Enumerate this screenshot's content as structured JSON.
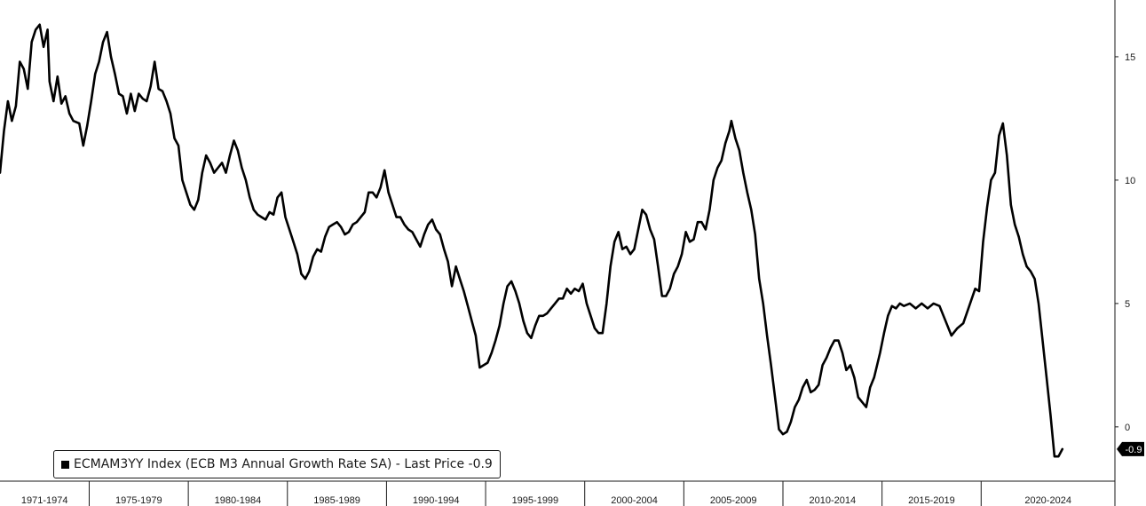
{
  "legend": {
    "text": "ECMAM3YY Index (ECB M3 Annual Growth Rate SA) - Last Price -0.9"
  },
  "last_price_label": "-0.9",
  "colors": {
    "line": "#000000",
    "axis": "#1a1a1a",
    "background": "#ffffff"
  },
  "chart_data": {
    "type": "line",
    "title": "",
    "xlabel": "",
    "ylabel": "",
    "y_axis_side": "right",
    "grid": false,
    "legend_position": "bottom-left",
    "xlim": [
      1970.5,
      2026.75
    ],
    "ylim": [
      -2.2,
      17.3
    ],
    "y_ticks": [
      0,
      5,
      10,
      15
    ],
    "y_tick_labels": [
      "0",
      "5",
      "10",
      "15"
    ],
    "x_period_labels": [
      "1971-1974",
      "1975-1979",
      "1980-1984",
      "1985-1989",
      "1990-1994",
      "1995-1999",
      "2000-2004",
      "2005-2009",
      "2010-2014",
      "2015-2019",
      "2020-2024"
    ],
    "x_period_boundaries": [
      1975,
      1980,
      1985,
      1990,
      1995,
      2000,
      2005,
      2010,
      2015,
      2020
    ],
    "series": [
      {
        "values": [
          [
            1970.5,
            10.3
          ],
          [
            1970.7,
            12.0
          ],
          [
            1970.9,
            13.2
          ],
          [
            1971.1,
            12.4
          ],
          [
            1971.3,
            13.0
          ],
          [
            1971.5,
            14.8
          ],
          [
            1971.7,
            14.5
          ],
          [
            1971.9,
            13.7
          ],
          [
            1972.1,
            15.6
          ],
          [
            1972.3,
            16.1
          ],
          [
            1972.5,
            16.3
          ],
          [
            1972.7,
            15.4
          ],
          [
            1972.9,
            16.1
          ],
          [
            1973.0,
            14.0
          ],
          [
            1973.2,
            13.2
          ],
          [
            1973.4,
            14.2
          ],
          [
            1973.6,
            13.1
          ],
          [
            1973.8,
            13.4
          ],
          [
            1974.0,
            12.7
          ],
          [
            1974.2,
            12.4
          ],
          [
            1974.5,
            12.3
          ],
          [
            1974.7,
            11.4
          ],
          [
            1974.9,
            12.2
          ],
          [
            1975.1,
            13.2
          ],
          [
            1975.3,
            14.3
          ],
          [
            1975.5,
            14.8
          ],
          [
            1975.7,
            15.6
          ],
          [
            1975.9,
            16.0
          ],
          [
            1976.1,
            15.0
          ],
          [
            1976.3,
            14.3
          ],
          [
            1976.5,
            13.5
          ],
          [
            1976.7,
            13.4
          ],
          [
            1976.9,
            12.7
          ],
          [
            1977.1,
            13.5
          ],
          [
            1977.3,
            12.8
          ],
          [
            1977.5,
            13.5
          ],
          [
            1977.7,
            13.3
          ],
          [
            1977.9,
            13.2
          ],
          [
            1978.1,
            13.8
          ],
          [
            1978.3,
            14.8
          ],
          [
            1978.5,
            13.7
          ],
          [
            1978.7,
            13.6
          ],
          [
            1978.9,
            13.2
          ],
          [
            1979.1,
            12.7
          ],
          [
            1979.3,
            11.7
          ],
          [
            1979.5,
            11.4
          ],
          [
            1979.7,
            10.0
          ],
          [
            1979.9,
            9.5
          ],
          [
            1980.1,
            9.0
          ],
          [
            1980.3,
            8.8
          ],
          [
            1980.5,
            9.2
          ],
          [
            1980.7,
            10.3
          ],
          [
            1980.9,
            11.0
          ],
          [
            1981.1,
            10.7
          ],
          [
            1981.3,
            10.3
          ],
          [
            1981.5,
            10.5
          ],
          [
            1981.7,
            10.7
          ],
          [
            1981.9,
            10.3
          ],
          [
            1982.1,
            11.0
          ],
          [
            1982.3,
            11.6
          ],
          [
            1982.5,
            11.2
          ],
          [
            1982.7,
            10.5
          ],
          [
            1982.9,
            10.0
          ],
          [
            1983.1,
            9.3
          ],
          [
            1983.3,
            8.8
          ],
          [
            1983.5,
            8.6
          ],
          [
            1983.7,
            8.5
          ],
          [
            1983.9,
            8.4
          ],
          [
            1984.1,
            8.7
          ],
          [
            1984.3,
            8.6
          ],
          [
            1984.5,
            9.3
          ],
          [
            1984.7,
            9.5
          ],
          [
            1984.9,
            8.5
          ],
          [
            1985.1,
            8.0
          ],
          [
            1985.3,
            7.5
          ],
          [
            1985.5,
            7.0
          ],
          [
            1985.7,
            6.2
          ],
          [
            1985.9,
            6.0
          ],
          [
            1986.1,
            6.3
          ],
          [
            1986.3,
            6.9
          ],
          [
            1986.5,
            7.2
          ],
          [
            1986.7,
            7.1
          ],
          [
            1986.9,
            7.7
          ],
          [
            1987.1,
            8.1
          ],
          [
            1987.3,
            8.2
          ],
          [
            1987.5,
            8.3
          ],
          [
            1987.7,
            8.1
          ],
          [
            1987.9,
            7.8
          ],
          [
            1988.1,
            7.9
          ],
          [
            1988.3,
            8.2
          ],
          [
            1988.5,
            8.3
          ],
          [
            1988.7,
            8.5
          ],
          [
            1988.9,
            8.7
          ],
          [
            1989.1,
            9.5
          ],
          [
            1989.3,
            9.5
          ],
          [
            1989.5,
            9.3
          ],
          [
            1989.7,
            9.7
          ],
          [
            1989.9,
            10.4
          ],
          [
            1990.1,
            9.5
          ],
          [
            1990.3,
            9.0
          ],
          [
            1990.5,
            8.5
          ],
          [
            1990.7,
            8.5
          ],
          [
            1990.9,
            8.2
          ],
          [
            1991.1,
            8.0
          ],
          [
            1991.3,
            7.9
          ],
          [
            1991.5,
            7.6
          ],
          [
            1991.7,
            7.3
          ],
          [
            1991.9,
            7.8
          ],
          [
            1992.1,
            8.2
          ],
          [
            1992.3,
            8.4
          ],
          [
            1992.5,
            8.0
          ],
          [
            1992.7,
            7.8
          ],
          [
            1992.9,
            7.2
          ],
          [
            1993.1,
            6.7
          ],
          [
            1993.3,
            5.7
          ],
          [
            1993.5,
            6.5
          ],
          [
            1993.7,
            6.0
          ],
          [
            1993.9,
            5.5
          ],
          [
            1994.1,
            4.9
          ],
          [
            1994.3,
            4.3
          ],
          [
            1994.5,
            3.7
          ],
          [
            1994.7,
            2.4
          ],
          [
            1994.9,
            2.5
          ],
          [
            1995.1,
            2.6
          ],
          [
            1995.3,
            3.0
          ],
          [
            1995.5,
            3.5
          ],
          [
            1995.7,
            4.1
          ],
          [
            1995.9,
            5.0
          ],
          [
            1996.1,
            5.7
          ],
          [
            1996.3,
            5.9
          ],
          [
            1996.5,
            5.5
          ],
          [
            1996.7,
            5.0
          ],
          [
            1996.9,
            4.3
          ],
          [
            1997.1,
            3.8
          ],
          [
            1997.3,
            3.6
          ],
          [
            1997.5,
            4.1
          ],
          [
            1997.7,
            4.5
          ],
          [
            1997.9,
            4.5
          ],
          [
            1998.1,
            4.6
          ],
          [
            1998.3,
            4.8
          ],
          [
            1998.5,
            5.0
          ],
          [
            1998.7,
            5.2
          ],
          [
            1998.9,
            5.2
          ],
          [
            1999.1,
            5.6
          ],
          [
            1999.3,
            5.4
          ],
          [
            1999.5,
            5.6
          ],
          [
            1999.7,
            5.5
          ],
          [
            1999.9,
            5.8
          ],
          [
            2000.1,
            5.0
          ],
          [
            2000.3,
            4.5
          ],
          [
            2000.5,
            4.0
          ],
          [
            2000.7,
            3.8
          ],
          [
            2000.9,
            3.8
          ],
          [
            2001.1,
            5.0
          ],
          [
            2001.3,
            6.5
          ],
          [
            2001.5,
            7.5
          ],
          [
            2001.7,
            7.9
          ],
          [
            2001.9,
            7.2
          ],
          [
            2002.1,
            7.3
          ],
          [
            2002.3,
            7.0
          ],
          [
            2002.5,
            7.2
          ],
          [
            2002.7,
            8.0
          ],
          [
            2002.9,
            8.8
          ],
          [
            2003.1,
            8.6
          ],
          [
            2003.3,
            8.0
          ],
          [
            2003.5,
            7.6
          ],
          [
            2003.7,
            6.5
          ],
          [
            2003.9,
            5.3
          ],
          [
            2004.1,
            5.3
          ],
          [
            2004.3,
            5.6
          ],
          [
            2004.5,
            6.2
          ],
          [
            2004.7,
            6.5
          ],
          [
            2004.9,
            7.0
          ],
          [
            2005.1,
            7.9
          ],
          [
            2005.3,
            7.5
          ],
          [
            2005.5,
            7.6
          ],
          [
            2005.7,
            8.3
          ],
          [
            2005.9,
            8.3
          ],
          [
            2006.1,
            8.0
          ],
          [
            2006.3,
            8.8
          ],
          [
            2006.5,
            10.0
          ],
          [
            2006.7,
            10.5
          ],
          [
            2006.9,
            10.8
          ],
          [
            2007.1,
            11.5
          ],
          [
            2007.3,
            12.0
          ],
          [
            2007.4,
            12.4
          ],
          [
            2007.6,
            11.7
          ],
          [
            2007.8,
            11.2
          ],
          [
            2008.0,
            10.3
          ],
          [
            2008.2,
            9.5
          ],
          [
            2008.4,
            8.8
          ],
          [
            2008.6,
            7.8
          ],
          [
            2008.8,
            6.0
          ],
          [
            2009.0,
            5.0
          ],
          [
            2009.2,
            3.7
          ],
          [
            2009.4,
            2.5
          ],
          [
            2009.6,
            1.2
          ],
          [
            2009.8,
            -0.1
          ],
          [
            2010.0,
            -0.3
          ],
          [
            2010.2,
            -0.2
          ],
          [
            2010.4,
            0.2
          ],
          [
            2010.6,
            0.8
          ],
          [
            2010.8,
            1.1
          ],
          [
            2011.0,
            1.6
          ],
          [
            2011.2,
            1.9
          ],
          [
            2011.4,
            1.4
          ],
          [
            2011.6,
            1.5
          ],
          [
            2011.8,
            1.7
          ],
          [
            2012.0,
            2.5
          ],
          [
            2012.2,
            2.8
          ],
          [
            2012.4,
            3.2
          ],
          [
            2012.6,
            3.5
          ],
          [
            2012.8,
            3.5
          ],
          [
            2013.0,
            3.0
          ],
          [
            2013.2,
            2.3
          ],
          [
            2013.4,
            2.5
          ],
          [
            2013.6,
            2.0
          ],
          [
            2013.8,
            1.2
          ],
          [
            2014.0,
            1.0
          ],
          [
            2014.2,
            0.8
          ],
          [
            2014.4,
            1.6
          ],
          [
            2014.6,
            2.0
          ],
          [
            2014.9,
            3.0
          ],
          [
            2015.1,
            3.8
          ],
          [
            2015.3,
            4.5
          ],
          [
            2015.5,
            4.9
          ],
          [
            2015.7,
            4.8
          ],
          [
            2015.9,
            5.0
          ],
          [
            2016.1,
            4.9
          ],
          [
            2016.4,
            5.0
          ],
          [
            2016.7,
            4.8
          ],
          [
            2017.0,
            5.0
          ],
          [
            2017.3,
            4.8
          ],
          [
            2017.6,
            5.0
          ],
          [
            2017.9,
            4.9
          ],
          [
            2018.2,
            4.3
          ],
          [
            2018.5,
            3.7
          ],
          [
            2018.8,
            4.0
          ],
          [
            2019.1,
            4.2
          ],
          [
            2019.4,
            4.9
          ],
          [
            2019.7,
            5.6
          ],
          [
            2019.9,
            5.5
          ],
          [
            2020.1,
            7.5
          ],
          [
            2020.3,
            8.9
          ],
          [
            2020.5,
            10.0
          ],
          [
            2020.7,
            10.3
          ],
          [
            2020.9,
            11.8
          ],
          [
            2021.1,
            12.3
          ],
          [
            2021.3,
            11.0
          ],
          [
            2021.5,
            9.0
          ],
          [
            2021.7,
            8.2
          ],
          [
            2021.9,
            7.7
          ],
          [
            2022.1,
            7.0
          ],
          [
            2022.3,
            6.5
          ],
          [
            2022.5,
            6.3
          ],
          [
            2022.7,
            6.0
          ],
          [
            2022.9,
            5.0
          ],
          [
            2023.1,
            3.5
          ],
          [
            2023.3,
            2.0
          ],
          [
            2023.5,
            0.5
          ],
          [
            2023.7,
            -1.2
          ],
          [
            2023.9,
            -1.2
          ],
          [
            2024.1,
            -0.9
          ]
        ]
      }
    ]
  }
}
